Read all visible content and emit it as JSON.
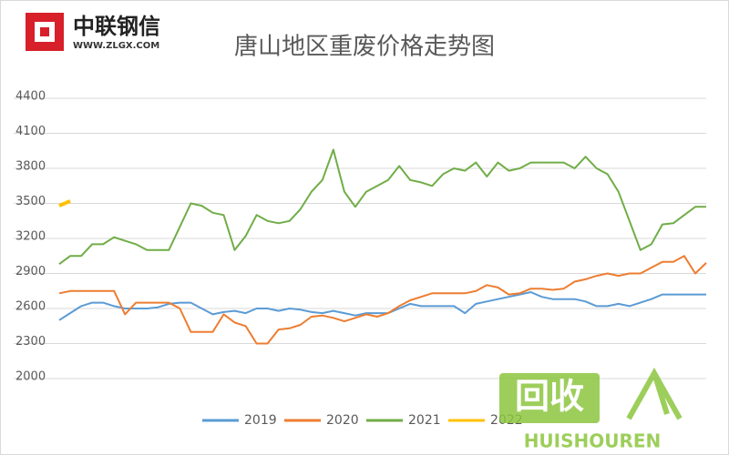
{
  "logo": {
    "name": "中联钢信",
    "url": "WWW.ZLGX.COM"
  },
  "watermark": {
    "name": "回收",
    "url": "HUISHOUREN"
  },
  "chart_data": {
    "type": "line",
    "title": "唐山地区重废价格走势图",
    "ylim": [
      2000,
      4400
    ],
    "yticks": [
      2000,
      2300,
      2600,
      2900,
      3200,
      3500,
      3800,
      4100,
      4400
    ],
    "grid": true,
    "legend": "bottom",
    "series": [
      {
        "name": "2019",
        "color": "#5b9bd5",
        "values": [
          2500,
          2560,
          2620,
          2650,
          2650,
          2620,
          2600,
          2600,
          2600,
          2610,
          2640,
          2650,
          2650,
          2600,
          2550,
          2570,
          2580,
          2560,
          2600,
          2600,
          2580,
          2600,
          2590,
          2570,
          2560,
          2580,
          2560,
          2540,
          2560,
          2560,
          2560,
          2600,
          2640,
          2620,
          2620,
          2620,
          2620,
          2560,
          2640,
          2660,
          2680,
          2700,
          2720,
          2740,
          2700,
          2680,
          2680,
          2680,
          2660,
          2620,
          2620,
          2640,
          2620,
          2650,
          2680,
          2720,
          2720,
          2720,
          2720,
          2720
        ]
      },
      {
        "name": "2020",
        "color": "#ed7d31",
        "values": [
          2730,
          2750,
          2750,
          2750,
          2750,
          2750,
          2550,
          2650,
          2650,
          2650,
          2650,
          2600,
          2400,
          2400,
          2400,
          2550,
          2480,
          2450,
          2300,
          2300,
          2420,
          2430,
          2460,
          2530,
          2540,
          2520,
          2490,
          2520,
          2550,
          2530,
          2560,
          2620,
          2670,
          2700,
          2730,
          2730,
          2730,
          2730,
          2750,
          2800,
          2780,
          2720,
          2730,
          2770,
          2770,
          2760,
          2770,
          2830,
          2850,
          2880,
          2900,
          2880,
          2900,
          2900,
          2950,
          3000,
          3000,
          3050,
          2900,
          2990
        ]
      },
      {
        "name": "2021",
        "color": "#70ad47",
        "values": [
          2980,
          3050,
          3050,
          3150,
          3150,
          3210,
          3180,
          3150,
          3100,
          3100,
          3100,
          3300,
          3500,
          3480,
          3420,
          3400,
          3100,
          3220,
          3400,
          3350,
          3330,
          3350,
          3450,
          3600,
          3700,
          3960,
          3600,
          3470,
          3600,
          3650,
          3700,
          3820,
          3700,
          3680,
          3650,
          3750,
          3800,
          3780,
          3850,
          3730,
          3850,
          3780,
          3800,
          3850,
          3850,
          3850,
          3850,
          3800,
          3900,
          3800,
          3750,
          3600,
          3350,
          3100,
          3150,
          3320,
          3330,
          3400,
          3470,
          3470
        ]
      },
      {
        "name": "2022",
        "color": "#ffc000",
        "values": [
          3480,
          3520,
          null,
          null,
          null,
          null,
          null,
          null,
          null,
          null,
          null,
          null,
          null,
          null,
          null,
          null,
          null,
          null,
          null,
          null,
          null,
          null,
          null,
          null,
          null,
          null,
          null,
          null,
          null,
          null,
          null,
          null,
          null,
          null,
          null,
          null,
          null,
          null,
          null,
          null,
          null,
          null,
          null,
          null,
          null,
          null,
          null,
          null,
          null,
          null,
          null,
          null,
          null,
          null,
          null,
          null,
          null,
          null,
          null,
          null
        ]
      }
    ]
  }
}
